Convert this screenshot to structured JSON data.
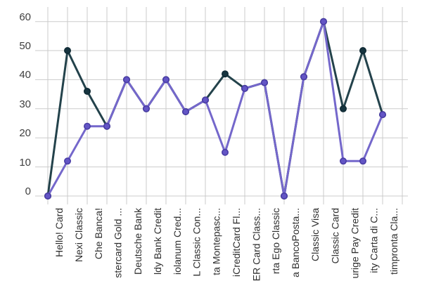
{
  "chart_data": {
    "type": "line",
    "title": "",
    "xlabel": "",
    "ylabel": "",
    "categories": [
      "Hello! Card",
      "Nexi Classic",
      "Che Banca!",
      "stercard Gold ...",
      "Deutsche Bank",
      "ldy Bank Credit",
      "iolanum Cred...",
      "L Classic Con...",
      "ta Montepasc...",
      "iCreditCard Fl...",
      "ER Card Class...",
      "rta Ego Classic",
      "a BancoPosta...",
      "Classic Visa",
      "Classic Card",
      "urige Pay Credit",
      "ity Carta di C...",
      "timpronta Cla..."
    ],
    "series": [
      {
        "name": "dark-teal-series",
        "line_color": "#23424b",
        "point_fill": "#16343f",
        "point_stroke": "#0f2a34",
        "values": [
          0,
          50,
          36,
          24,
          40,
          30,
          40,
          29,
          33,
          42,
          37,
          39,
          0,
          41,
          60,
          30,
          50,
          28
        ]
      },
      {
        "name": "purple-series",
        "line_color": "#7467cb",
        "point_fill": "#6355c5",
        "point_stroke": "#4a3da6",
        "values": [
          0,
          12,
          24,
          24,
          40,
          30,
          40,
          29,
          33,
          15,
          37,
          39,
          0,
          41,
          60,
          12,
          12,
          28
        ]
      }
    ],
    "y_ticks": [
      0,
      10,
      20,
      30,
      40,
      50,
      60
    ],
    "ylim": [
      0,
      60
    ],
    "grid": true,
    "legend_position": "none",
    "x_tick_rotation": 90
  },
  "colors": {
    "background": "#ffffff",
    "grid": "#cbcbcb",
    "y_axis_text": "#3f3f3f",
    "x_axis_text": "#2f2f2f"
  }
}
